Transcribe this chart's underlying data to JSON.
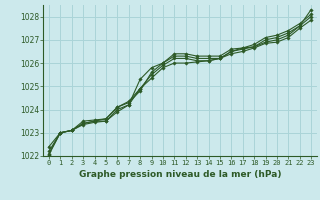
{
  "title": "Graphe pression niveau de la mer (hPa)",
  "bg_color": "#cce9ec",
  "grid_color": "#aad4d8",
  "line_color": "#2d5a27",
  "spine_color": "#2d5a27",
  "xlim": [
    -0.5,
    23.5
  ],
  "ylim": [
    1022,
    1028.5
  ],
  "yticks": [
    1022,
    1023,
    1024,
    1025,
    1026,
    1027,
    1028
  ],
  "xticks": [
    0,
    1,
    2,
    3,
    4,
    5,
    6,
    7,
    8,
    9,
    10,
    11,
    12,
    13,
    14,
    15,
    16,
    17,
    18,
    19,
    20,
    21,
    22,
    23
  ],
  "series": [
    [
      1022.2,
      1023.0,
      1023.1,
      1023.4,
      1023.5,
      1023.5,
      1024.0,
      1024.2,
      1025.3,
      1025.8,
      1026.0,
      1026.4,
      1026.4,
      1026.3,
      1026.3,
      1026.3,
      1026.6,
      1026.65,
      1026.7,
      1027.0,
      1027.1,
      1027.3,
      1027.6,
      1028.3
    ],
    [
      1022.4,
      1023.0,
      1023.1,
      1023.5,
      1023.55,
      1023.6,
      1024.1,
      1024.35,
      1024.9,
      1025.35,
      1025.8,
      1026.0,
      1026.0,
      1026.05,
      1026.1,
      1026.2,
      1026.5,
      1026.65,
      1026.8,
      1027.1,
      1027.2,
      1027.4,
      1027.7,
      1028.1
    ],
    [
      1022.1,
      1023.0,
      1023.1,
      1023.4,
      1023.5,
      1023.6,
      1024.1,
      1024.3,
      1024.8,
      1025.6,
      1026.0,
      1026.3,
      1026.3,
      1026.2,
      1026.2,
      1026.2,
      1026.5,
      1026.6,
      1026.7,
      1026.9,
      1027.0,
      1027.2,
      1027.6,
      1028.0
    ],
    [
      1022.05,
      1023.0,
      1023.1,
      1023.35,
      1023.45,
      1023.5,
      1023.9,
      1024.2,
      1024.9,
      1025.5,
      1025.9,
      1026.2,
      1026.2,
      1026.1,
      1026.1,
      1026.2,
      1026.4,
      1026.5,
      1026.65,
      1026.85,
      1026.9,
      1027.1,
      1027.5,
      1027.85
    ]
  ],
  "tick_fontsize": 5.5,
  "label_fontsize": 6.5
}
